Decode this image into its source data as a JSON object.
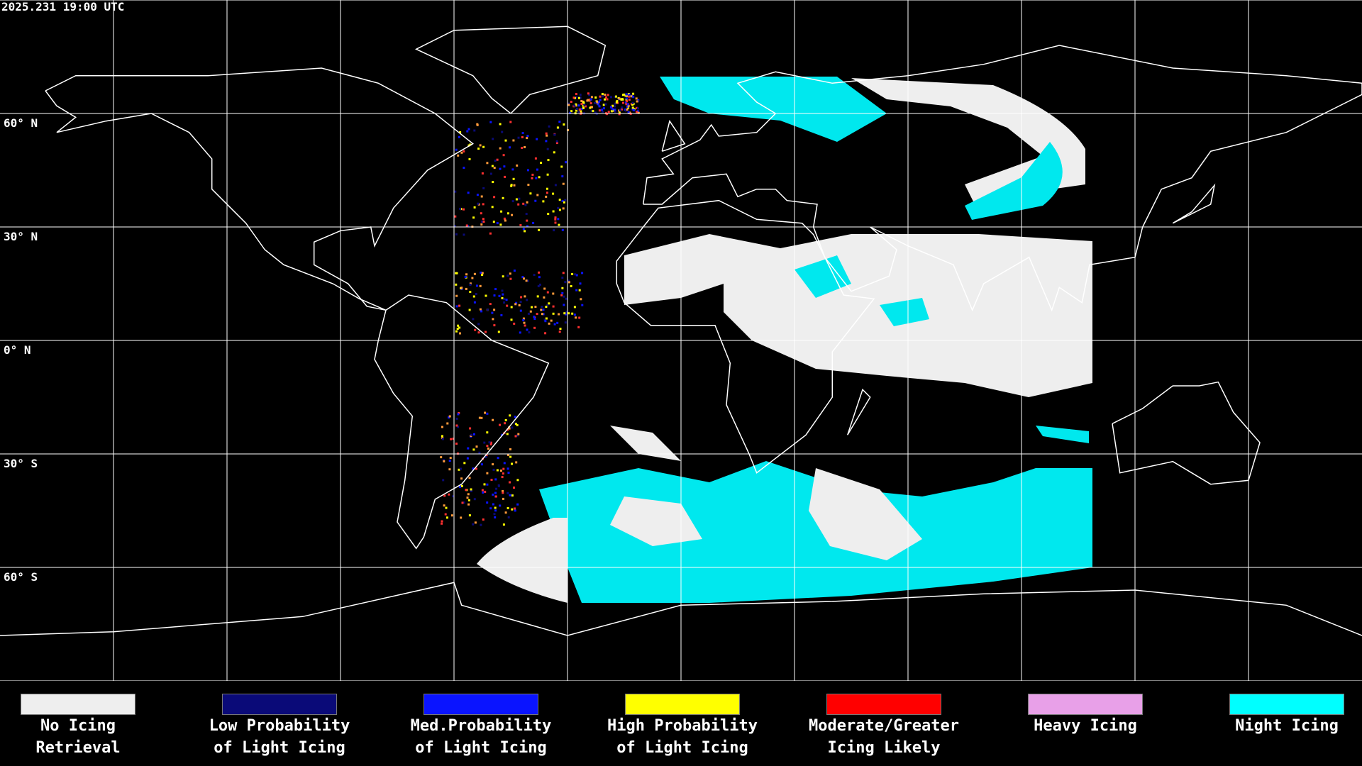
{
  "timestamp": "2025.231 19:00 UTC",
  "latitude_labels": [
    "60° N",
    "30° N",
    "0° N",
    "30° S",
    "60° S"
  ],
  "legend": [
    {
      "lines": [
        "No Icing",
        "Retrieval"
      ],
      "color": "#eeeeee"
    },
    {
      "lines": [
        "Low Probability",
        "of Light Icing"
      ],
      "color": "#0a0a78"
    },
    {
      "lines": [
        "Med.Probability",
        "of Light Icing"
      ],
      "color": "#0a14ff"
    },
    {
      "lines": [
        "High Probability",
        "of Light Icing"
      ],
      "color": "#ffff00"
    },
    {
      "lines": [
        "Moderate/Greater",
        "Icing Likely"
      ],
      "color": "#ff0000"
    },
    {
      "lines": [
        "Heavy Icing"
      ],
      "color": "#e8a0e8"
    },
    {
      "lines": [
        "Night Icing"
      ],
      "color": "#00ffff"
    }
  ]
}
